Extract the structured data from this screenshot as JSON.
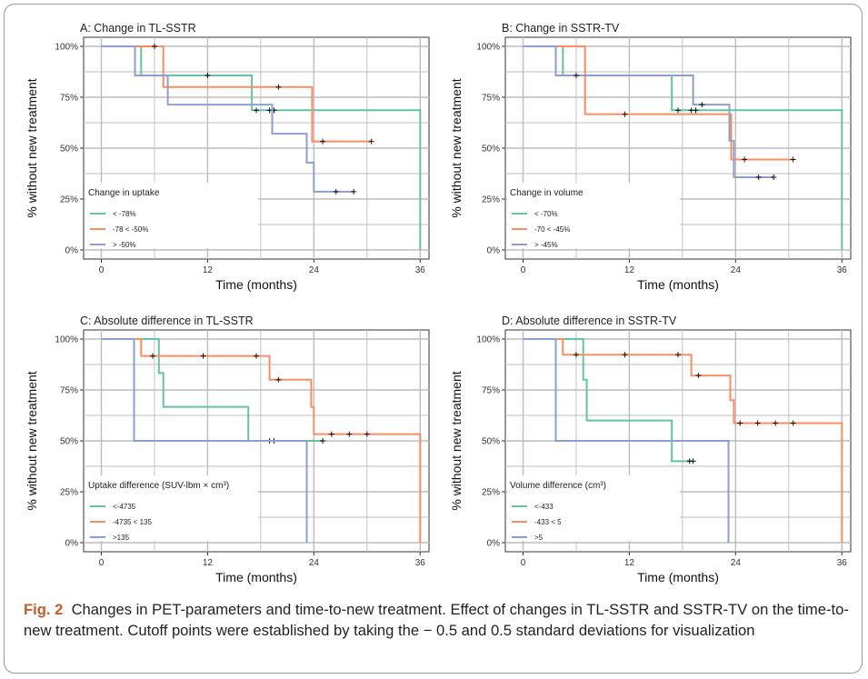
{
  "figure": {
    "caption_label": "Fig. 2",
    "caption_text": "Changes in PET-parameters and time-to-new treatment. Effect of changes in TL-SSTR and SSTR-TV on the time-to-new treatment. Cutoff points were established by taking the − 0.5 and 0.5 standard deviations for visualization"
  },
  "colors": {
    "green": "#66c2a5",
    "orange": "#fc8d62",
    "blue": "#8da0cb",
    "grid": "#bdbdbd",
    "axis": "#333333"
  },
  "chart_data": [
    {
      "type": "line",
      "title": "A: Change in TL-SSTR",
      "xlabel": "Time (months)",
      "ylabel": "% without new treatment",
      "xlim": [
        -2,
        37
      ],
      "ylim": [
        0,
        1
      ],
      "xticks": [
        "0",
        "12",
        "24",
        "36"
      ],
      "yticks": [
        "0%",
        "25%",
        "50%",
        "75%",
        "100%"
      ],
      "legend": {
        "title": "Change in uptake",
        "position": "bottom-left"
      },
      "series": [
        {
          "name": "< -78%",
          "color": "green",
          "steps": [
            [
              0,
              1
            ],
            [
              4.5,
              1
            ],
            [
              4.5,
              0.857
            ],
            [
              17,
              0.857
            ],
            [
              17,
              0.686
            ],
            [
              36,
              0.686
            ],
            [
              36,
              0
            ]
          ],
          "censors": [
            [
              12,
              0.857
            ],
            [
              17.5,
              0.686
            ],
            [
              19,
              0.686
            ],
            [
              19.5,
              0.686
            ]
          ]
        },
        {
          "name": "-78 < -50%",
          "color": "orange",
          "steps": [
            [
              0,
              1
            ],
            [
              7,
              1
            ],
            [
              7,
              0.8
            ],
            [
              23.8,
              0.8
            ],
            [
              23.8,
              0.533
            ],
            [
              30.5,
              0.533
            ]
          ],
          "censors": [
            [
              6,
              1
            ],
            [
              20,
              0.8
            ],
            [
              25,
              0.533
            ],
            [
              30.5,
              0.533
            ]
          ]
        },
        {
          "name": "> -50%",
          "color": "blue",
          "steps": [
            [
              0,
              1
            ],
            [
              3.8,
              1
            ],
            [
              3.8,
              0.857
            ],
            [
              7.5,
              0.857
            ],
            [
              7.5,
              0.714
            ],
            [
              19.3,
              0.714
            ],
            [
              19.3,
              0.571
            ],
            [
              23.2,
              0.571
            ],
            [
              23.2,
              0.429
            ],
            [
              24,
              0.429
            ],
            [
              24,
              0.286
            ],
            [
              28.5,
              0.286
            ]
          ],
          "censors": [
            [
              26.5,
              0.286
            ],
            [
              28.5,
              0.286
            ]
          ]
        }
      ]
    },
    {
      "type": "line",
      "title": "B: Change in SSTR-TV",
      "xlabel": "Time (months)",
      "ylabel": "% without new treatment",
      "xlim": [
        -2,
        37
      ],
      "ylim": [
        0,
        1
      ],
      "xticks": [
        "0",
        "12",
        "24",
        "36"
      ],
      "yticks": [
        "0%",
        "25%",
        "50%",
        "75%",
        "100%"
      ],
      "legend": {
        "title": "Change in volume",
        "position": "bottom-left"
      },
      "series": [
        {
          "name": "< -70%",
          "color": "green",
          "steps": [
            [
              0,
              1
            ],
            [
              4.5,
              1
            ],
            [
              4.5,
              0.857
            ],
            [
              16.8,
              0.857
            ],
            [
              16.8,
              0.686
            ],
            [
              36,
              0.686
            ],
            [
              36,
              0
            ]
          ],
          "censors": [
            [
              17.5,
              0.686
            ],
            [
              19,
              0.686
            ],
            [
              19.5,
              0.686
            ]
          ]
        },
        {
          "name": "-70 < -45%",
          "color": "orange",
          "steps": [
            [
              0,
              1
            ],
            [
              7,
              1
            ],
            [
              7,
              0.667
            ],
            [
              23.5,
              0.667
            ],
            [
              23.5,
              0.444
            ],
            [
              30.5,
              0.444
            ]
          ],
          "censors": [
            [
              11.5,
              0.667
            ],
            [
              25,
              0.444
            ],
            [
              30.5,
              0.444
            ]
          ]
        },
        {
          "name": "> -45%",
          "color": "blue",
          "steps": [
            [
              0,
              1
            ],
            [
              3.7,
              1
            ],
            [
              3.7,
              0.857
            ],
            [
              19.2,
              0.857
            ],
            [
              19.2,
              0.714
            ],
            [
              23.3,
              0.714
            ],
            [
              23.3,
              0.536
            ],
            [
              23.8,
              0.536
            ],
            [
              23.8,
              0.357
            ],
            [
              28.3,
              0.357
            ]
          ],
          "censors": [
            [
              6,
              0.857
            ],
            [
              20.2,
              0.714
            ],
            [
              26.6,
              0.357
            ],
            [
              28.3,
              0.357
            ]
          ]
        }
      ]
    },
    {
      "type": "line",
      "title": "C: Absolute difference in TL-SSTR",
      "xlabel": "Time (months)",
      "ylabel": "% without new treatment",
      "xlim": [
        -2,
        37
      ],
      "ylim": [
        0,
        1
      ],
      "xticks": [
        "0",
        "12",
        "24",
        "36"
      ],
      "yticks": [
        "0%",
        "25%",
        "50%",
        "75%",
        "100%"
      ],
      "legend": {
        "title": "Uptake difference (SUV-lbm × cm³)",
        "position": "bottom-left"
      },
      "series": [
        {
          "name": "<-4735",
          "color": "green",
          "steps": [
            [
              0,
              1
            ],
            [
              6.5,
              1
            ],
            [
              6.5,
              0.833
            ],
            [
              7,
              0.833
            ],
            [
              7,
              0.667
            ],
            [
              16.6,
              0.667
            ],
            [
              16.6,
              0.5
            ],
            [
              25,
              0.5
            ]
          ],
          "censors": [
            [
              19,
              0.5
            ],
            [
              19.5,
              0.5
            ],
            [
              25,
              0.5
            ]
          ]
        },
        {
          "name": "-4735 < 135",
          "color": "orange",
          "steps": [
            [
              0,
              1
            ],
            [
              4.5,
              1
            ],
            [
              4.5,
              0.917
            ],
            [
              19,
              0.917
            ],
            [
              19,
              0.8
            ],
            [
              23.7,
              0.8
            ],
            [
              23.7,
              0.667
            ],
            [
              24,
              0.667
            ],
            [
              24,
              0.533
            ],
            [
              36,
              0.533
            ],
            [
              36,
              0
            ]
          ],
          "censors": [
            [
              5.8,
              0.917
            ],
            [
              11.5,
              0.917
            ],
            [
              17.5,
              0.917
            ],
            [
              20,
              0.8
            ],
            [
              26,
              0.533
            ],
            [
              28,
              0.533
            ],
            [
              30,
              0.533
            ]
          ]
        },
        {
          "name": ">135",
          "color": "blue",
          "steps": [
            [
              0,
              1
            ],
            [
              3.7,
              1
            ],
            [
              3.7,
              0.5
            ],
            [
              23.2,
              0.5
            ],
            [
              23.2,
              0
            ]
          ],
          "censors": []
        }
      ]
    },
    {
      "type": "line",
      "title": "D: Absolute difference in SSTR-TV",
      "xlabel": "Time (months)",
      "ylabel": "% without new treatment",
      "xlim": [
        -2,
        37
      ],
      "ylim": [
        0,
        1
      ],
      "xticks": [
        "0",
        "12",
        "24",
        "36"
      ],
      "yticks": [
        "0%",
        "25%",
        "50%",
        "75%",
        "100%"
      ],
      "legend": {
        "title": "Volume difference (cm³)",
        "position": "bottom-left"
      },
      "series": [
        {
          "name": "<-433",
          "color": "green",
          "steps": [
            [
              0,
              1
            ],
            [
              6.8,
              1
            ],
            [
              6.8,
              0.8
            ],
            [
              7.2,
              0.8
            ],
            [
              7.2,
              0.6
            ],
            [
              16.8,
              0.6
            ],
            [
              16.8,
              0.4
            ],
            [
              19.2,
              0.4
            ]
          ],
          "censors": [
            [
              18.8,
              0.4
            ],
            [
              19.2,
              0.4
            ]
          ]
        },
        {
          "name": "-433 < 5",
          "color": "orange",
          "steps": [
            [
              0,
              1
            ],
            [
              4.5,
              1
            ],
            [
              4.5,
              0.923
            ],
            [
              19,
              0.923
            ],
            [
              19,
              0.821
            ],
            [
              23.4,
              0.821
            ],
            [
              23.4,
              0.7
            ],
            [
              23.8,
              0.7
            ],
            [
              23.8,
              0.587
            ],
            [
              36,
              0.587
            ],
            [
              36,
              0
            ]
          ],
          "censors": [
            [
              6,
              0.923
            ],
            [
              11.5,
              0.923
            ],
            [
              17.5,
              0.923
            ],
            [
              19.8,
              0.821
            ],
            [
              24.5,
              0.587
            ],
            [
              26.5,
              0.587
            ],
            [
              28.5,
              0.587
            ],
            [
              30.5,
              0.587
            ]
          ]
        },
        {
          "name": ">5",
          "color": "blue",
          "steps": [
            [
              0,
              1
            ],
            [
              3.7,
              1
            ],
            [
              3.7,
              0.5
            ],
            [
              23.2,
              0.5
            ],
            [
              23.2,
              0
            ]
          ],
          "censors": []
        }
      ]
    }
  ]
}
